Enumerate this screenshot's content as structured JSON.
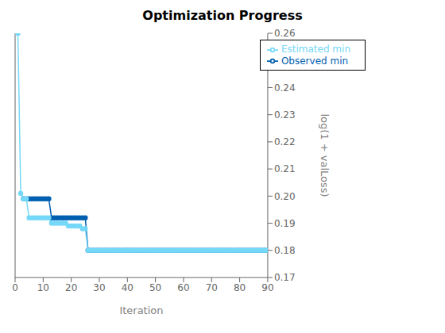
{
  "chart_data": {
    "type": "line",
    "title": "Optimization Progress",
    "xlabel": "Iteration",
    "ylabel": "log(1 + valLoss)",
    "xlim": [
      0,
      90
    ],
    "ylim": [
      0.17,
      0.26
    ],
    "xticks": [
      0,
      10,
      20,
      30,
      40,
      50,
      60,
      70,
      80,
      90
    ],
    "yticks": [
      0.17,
      0.18,
      0.19,
      {
        "value": 0.2,
        "label": "0.20"
      },
      0.21,
      0.22,
      0.23,
      0.24,
      0.25,
      0.26
    ],
    "grid": false,
    "legend": "upper right",
    "marker": "circle",
    "series": [
      {
        "name": "Observed min",
        "color": "#0060B0",
        "x": [
          3,
          4,
          5,
          6,
          7,
          8,
          9,
          10,
          11,
          12,
          13,
          14,
          15,
          16,
          17,
          18,
          19,
          20,
          21,
          22,
          23,
          24,
          25,
          26,
          27,
          28,
          29,
          30,
          31,
          32,
          33,
          34,
          35,
          36,
          37,
          38,
          39,
          40,
          41,
          42,
          43,
          44,
          45,
          46,
          47,
          48,
          49,
          50,
          51,
          52,
          53,
          54,
          55,
          56,
          57,
          58,
          59,
          60,
          61,
          62,
          63,
          64,
          65,
          66,
          67,
          68,
          69,
          70,
          71,
          72,
          73,
          74,
          75,
          76,
          77,
          78,
          79,
          80,
          81,
          82,
          83,
          84,
          85,
          86,
          87,
          88,
          89,
          90
        ],
        "values": [
          0.199,
          0.199,
          0.199,
          0.199,
          0.199,
          0.199,
          0.199,
          0.199,
          0.199,
          0.199,
          0.192,
          0.192,
          0.192,
          0.192,
          0.192,
          0.192,
          0.192,
          0.192,
          0.192,
          0.192,
          0.192,
          0.192,
          0.192,
          0.18,
          0.18,
          0.18,
          0.18,
          0.18,
          0.18,
          0.18,
          0.18,
          0.18,
          0.18,
          0.18,
          0.18,
          0.18,
          0.18,
          0.18,
          0.18,
          0.18,
          0.18,
          0.18,
          0.18,
          0.18,
          0.18,
          0.18,
          0.18,
          0.18,
          0.18,
          0.18,
          0.18,
          0.18,
          0.18,
          0.18,
          0.18,
          0.18,
          0.18,
          0.18,
          0.18,
          0.18,
          0.18,
          0.18,
          0.18,
          0.18,
          0.18,
          0.18,
          0.18,
          0.18,
          0.18,
          0.18,
          0.18,
          0.18,
          0.18,
          0.18,
          0.18,
          0.18,
          0.18,
          0.18,
          0.18,
          0.18,
          0.18,
          0.18,
          0.18,
          0.18,
          0.18,
          0.18,
          0.18,
          0.18
        ]
      },
      {
        "name": "Estimated min",
        "color": "#75D8F8",
        "x": [
          1,
          2,
          3,
          4,
          5,
          6,
          7,
          8,
          9,
          10,
          11,
          12,
          13,
          14,
          15,
          16,
          17,
          18,
          19,
          20,
          21,
          22,
          23,
          24,
          25,
          26,
          27,
          28,
          29,
          30,
          31,
          32,
          33,
          34,
          35,
          36,
          37,
          38,
          39,
          40,
          41,
          42,
          43,
          44,
          45,
          46,
          47,
          48,
          49,
          50,
          51,
          52,
          53,
          54,
          55,
          56,
          57,
          58,
          59,
          60,
          61,
          62,
          63,
          64,
          65,
          66,
          67,
          68,
          69,
          70,
          71,
          72,
          73,
          74,
          75,
          76,
          77,
          78,
          79,
          80,
          81,
          82,
          83,
          84,
          85,
          86,
          87,
          88,
          89,
          90
        ],
        "values": [
          0.26,
          0.201,
          0.199,
          0.199,
          0.192,
          0.192,
          0.192,
          0.192,
          0.192,
          0.192,
          0.192,
          0.192,
          0.19,
          0.19,
          0.19,
          0.19,
          0.19,
          0.19,
          0.189,
          0.189,
          0.189,
          0.189,
          0.189,
          0.188,
          0.188,
          0.18,
          0.18,
          0.18,
          0.18,
          0.18,
          0.18,
          0.18,
          0.18,
          0.18,
          0.18,
          0.18,
          0.18,
          0.18,
          0.18,
          0.18,
          0.18,
          0.18,
          0.18,
          0.18,
          0.18,
          0.18,
          0.18,
          0.18,
          0.18,
          0.18,
          0.18,
          0.18,
          0.18,
          0.18,
          0.18,
          0.18,
          0.18,
          0.18,
          0.18,
          0.18,
          0.18,
          0.18,
          0.18,
          0.18,
          0.18,
          0.18,
          0.18,
          0.18,
          0.18,
          0.18,
          0.18,
          0.18,
          0.18,
          0.18,
          0.18,
          0.18,
          0.18,
          0.18,
          0.18,
          0.18,
          0.18,
          0.18,
          0.18,
          0.18,
          0.18,
          0.18,
          0.18,
          0.18,
          0.18,
          0.18
        ]
      }
    ]
  }
}
